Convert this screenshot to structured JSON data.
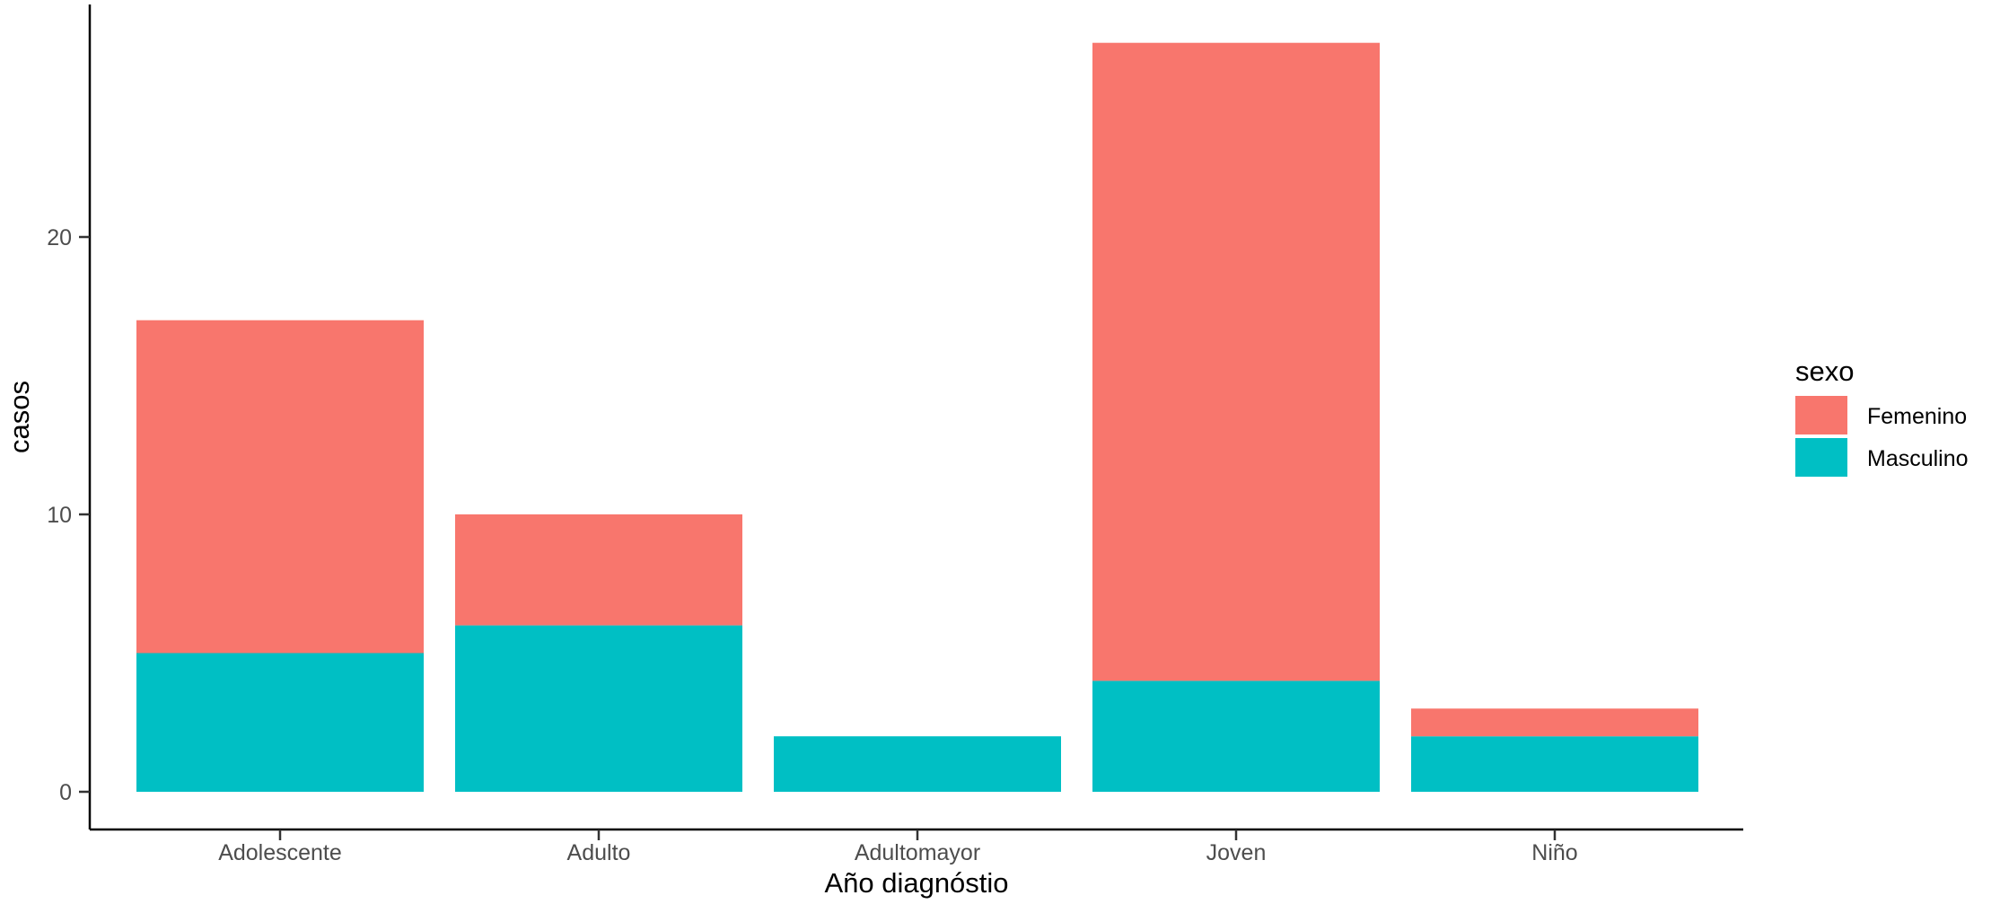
{
  "chart_data": {
    "type": "bar",
    "stacked": true,
    "title": "",
    "xlabel": "Año diagnóstio",
    "ylabel": "casos",
    "categories": [
      "Adolescente",
      "Adulto",
      "Adultomayor",
      "Joven",
      "Niño"
    ],
    "series": [
      {
        "name": "Femenino",
        "color": "#F8766D",
        "values": [
          12,
          4,
          0,
          23,
          1
        ]
      },
      {
        "name": "Masculino",
        "color": "#00BFC4",
        "values": [
          5,
          6,
          2,
          4,
          2
        ]
      }
    ],
    "ylim": [
      0,
      28
    ],
    "yticks": [
      0,
      10,
      20
    ],
    "grid": false,
    "legend": {
      "title": "sexo",
      "position": "right",
      "entries": [
        "Femenino",
        "Masculino"
      ]
    }
  }
}
